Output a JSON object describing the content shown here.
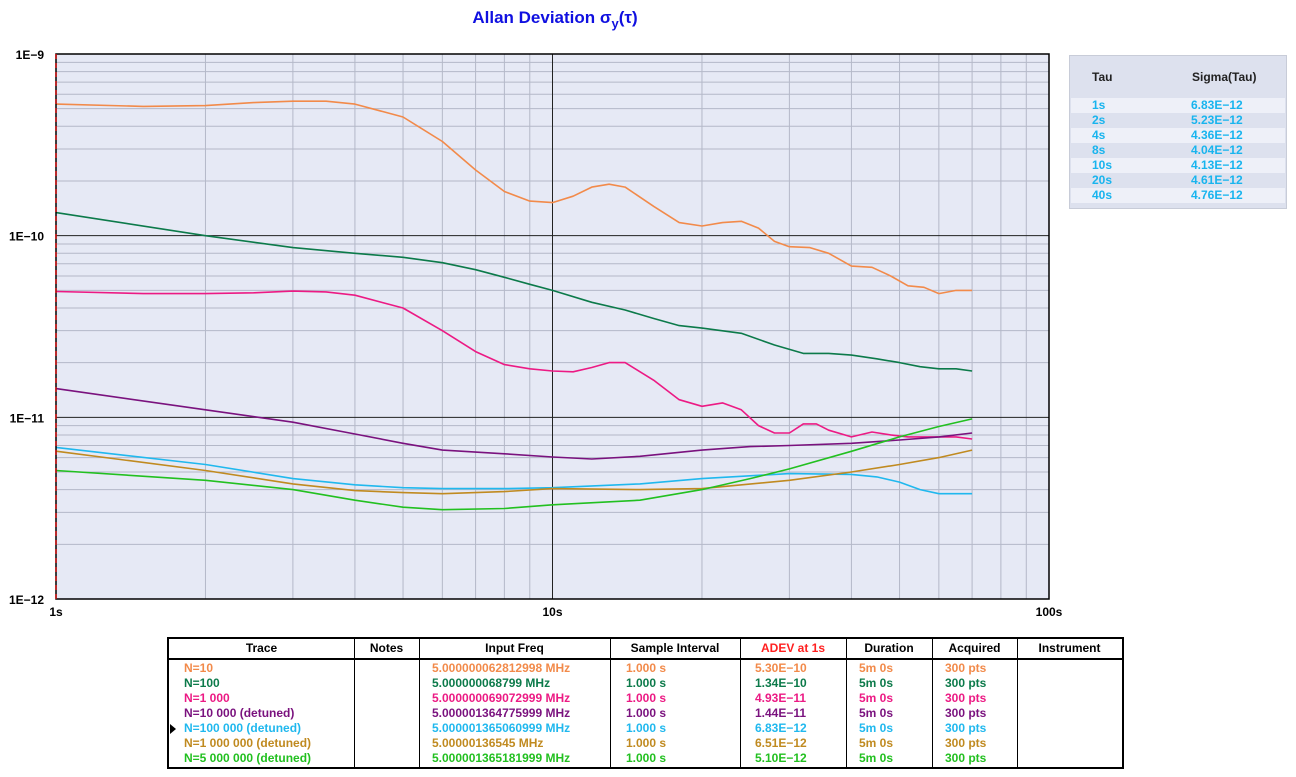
{
  "title": {
    "main": "Allan Deviation σ",
    "sub": "y",
    "tail": "(τ)"
  },
  "chart_data": {
    "type": "line",
    "title": "Allan Deviation σy(τ)",
    "x_scale": "log",
    "y_scale": "log",
    "xlim": [
      1,
      100
    ],
    "ylim": [
      1e-12,
      1e-09
    ],
    "x_tick_labels": [
      "1s",
      "10s",
      "100s"
    ],
    "y_tick_labels": [
      "1E−9",
      "1E−10",
      "1E−11",
      "1E−12"
    ],
    "grid": true,
    "series": [
      {
        "name": "N=10",
        "color": "#f28a4a",
        "points": [
          [
            1,
            5.3e-10
          ],
          [
            1.5,
            5.15e-10
          ],
          [
            2,
            5.2e-10
          ],
          [
            2.5,
            5.4e-10
          ],
          [
            3,
            5.5e-10
          ],
          [
            3.5,
            5.5e-10
          ],
          [
            4,
            5.3e-10
          ],
          [
            5,
            4.5e-10
          ],
          [
            6,
            3.3e-10
          ],
          [
            7,
            2.3e-10
          ],
          [
            8,
            1.75e-10
          ],
          [
            9,
            1.55e-10
          ],
          [
            10,
            1.52e-10
          ],
          [
            11,
            1.65e-10
          ],
          [
            12,
            1.85e-10
          ],
          [
            13,
            1.92e-10
          ],
          [
            14,
            1.85e-10
          ],
          [
            16,
            1.45e-10
          ],
          [
            18,
            1.18e-10
          ],
          [
            20,
            1.13e-10
          ],
          [
            22,
            1.18e-10
          ],
          [
            24,
            1.2e-10
          ],
          [
            26,
            1.1e-10
          ],
          [
            28,
            9.3e-11
          ],
          [
            30,
            8.7e-11
          ],
          [
            33,
            8.6e-11
          ],
          [
            36,
            8e-11
          ],
          [
            40,
            6.8e-11
          ],
          [
            44,
            6.7e-11
          ],
          [
            48,
            6e-11
          ],
          [
            52,
            5.3e-11
          ],
          [
            56,
            5.2e-11
          ],
          [
            60,
            4.8e-11
          ],
          [
            65,
            5e-11
          ],
          [
            70,
            5e-11
          ]
        ]
      },
      {
        "name": "N=100",
        "color": "#0c7a4a",
        "points": [
          [
            1,
            1.34e-10
          ],
          [
            2,
            1e-10
          ],
          [
            3,
            8.6e-11
          ],
          [
            4,
            8e-11
          ],
          [
            5,
            7.6e-11
          ],
          [
            6,
            7.1e-11
          ],
          [
            7,
            6.5e-11
          ],
          [
            8,
            5.9e-11
          ],
          [
            9,
            5.4e-11
          ],
          [
            10,
            5e-11
          ],
          [
            12,
            4.3e-11
          ],
          [
            14,
            3.9e-11
          ],
          [
            16,
            3.5e-11
          ],
          [
            18,
            3.2e-11
          ],
          [
            20,
            3.1e-11
          ],
          [
            24,
            2.9e-11
          ],
          [
            28,
            2.5e-11
          ],
          [
            32,
            2.25e-11
          ],
          [
            36,
            2.25e-11
          ],
          [
            40,
            2.2e-11
          ],
          [
            45,
            2.1e-11
          ],
          [
            50,
            2e-11
          ],
          [
            55,
            1.9e-11
          ],
          [
            60,
            1.85e-11
          ],
          [
            65,
            1.85e-11
          ],
          [
            70,
            1.8e-11
          ]
        ]
      },
      {
        "name": "N=1 000",
        "color": "#ec1a84",
        "points": [
          [
            1,
            4.93e-11
          ],
          [
            1.5,
            4.8e-11
          ],
          [
            2,
            4.8e-11
          ],
          [
            2.5,
            4.85e-11
          ],
          [
            3,
            4.95e-11
          ],
          [
            3.5,
            4.9e-11
          ],
          [
            4,
            4.7e-11
          ],
          [
            5,
            4e-11
          ],
          [
            6,
            3e-11
          ],
          [
            7,
            2.3e-11
          ],
          [
            8,
            1.95e-11
          ],
          [
            9,
            1.85e-11
          ],
          [
            10,
            1.8e-11
          ],
          [
            11,
            1.78e-11
          ],
          [
            12,
            1.88e-11
          ],
          [
            13,
            2e-11
          ],
          [
            14,
            2e-11
          ],
          [
            16,
            1.6e-11
          ],
          [
            18,
            1.25e-11
          ],
          [
            20,
            1.15e-11
          ],
          [
            22,
            1.2e-11
          ],
          [
            24,
            1.1e-11
          ],
          [
            26,
            9e-12
          ],
          [
            28,
            8.2e-12
          ],
          [
            30,
            8.2e-12
          ],
          [
            32,
            9.2e-12
          ],
          [
            34,
            9.2e-12
          ],
          [
            36,
            8.5e-12
          ],
          [
            40,
            7.8e-12
          ],
          [
            44,
            8.3e-12
          ],
          [
            48,
            8e-12
          ],
          [
            52,
            7.8e-12
          ],
          [
            56,
            7.8e-12
          ],
          [
            60,
            7.8e-12
          ],
          [
            65,
            7.8e-12
          ],
          [
            70,
            7.6e-12
          ]
        ]
      },
      {
        "name": "N=10 000 (detuned)",
        "color": "#7a127e",
        "points": [
          [
            1,
            1.44e-11
          ],
          [
            2,
            1.1e-11
          ],
          [
            3,
            9.4e-12
          ],
          [
            4,
            8.1e-12
          ],
          [
            5,
            7.2e-12
          ],
          [
            6,
            6.6e-12
          ],
          [
            8,
            6.3e-12
          ],
          [
            10,
            6.05e-12
          ],
          [
            12,
            5.9e-12
          ],
          [
            15,
            6.1e-12
          ],
          [
            20,
            6.6e-12
          ],
          [
            25,
            6.9e-12
          ],
          [
            30,
            7e-12
          ],
          [
            40,
            7.2e-12
          ],
          [
            50,
            7.5e-12
          ],
          [
            60,
            7.8e-12
          ],
          [
            70,
            8.2e-12
          ]
        ]
      },
      {
        "name": "N=100 000 (detuned)",
        "color": "#20b8ee",
        "points": [
          [
            1,
            6.83e-12
          ],
          [
            2,
            5.5e-12
          ],
          [
            3,
            4.6e-12
          ],
          [
            4,
            4.25e-12
          ],
          [
            5,
            4.1e-12
          ],
          [
            6,
            4.05e-12
          ],
          [
            8,
            4.05e-12
          ],
          [
            10,
            4.1e-12
          ],
          [
            15,
            4.3e-12
          ],
          [
            20,
            4.6e-12
          ],
          [
            30,
            4.9e-12
          ],
          [
            40,
            4.85e-12
          ],
          [
            45,
            4.7e-12
          ],
          [
            50,
            4.4e-12
          ],
          [
            55,
            4e-12
          ],
          [
            60,
            3.8e-12
          ],
          [
            70,
            3.8e-12
          ]
        ]
      },
      {
        "name": "N=1 000 000 (detuned)",
        "color": "#c08a20",
        "points": [
          [
            1,
            6.51e-12
          ],
          [
            2,
            5.1e-12
          ],
          [
            3,
            4.3e-12
          ],
          [
            4,
            3.95e-12
          ],
          [
            5,
            3.85e-12
          ],
          [
            6,
            3.8e-12
          ],
          [
            8,
            3.9e-12
          ],
          [
            10,
            4.05e-12
          ],
          [
            15,
            4e-12
          ],
          [
            20,
            4.05e-12
          ],
          [
            30,
            4.5e-12
          ],
          [
            40,
            5e-12
          ],
          [
            50,
            5.5e-12
          ],
          [
            60,
            6e-12
          ],
          [
            70,
            6.6e-12
          ]
        ]
      },
      {
        "name": "N=5 000 000 (detuned)",
        "color": "#22c020",
        "points": [
          [
            1,
            5.1e-12
          ],
          [
            2,
            4.5e-12
          ],
          [
            3,
            4e-12
          ],
          [
            4,
            3.5e-12
          ],
          [
            5,
            3.2e-12
          ],
          [
            6,
            3.1e-12
          ],
          [
            8,
            3.15e-12
          ],
          [
            10,
            3.3e-12
          ],
          [
            15,
            3.5e-12
          ],
          [
            20,
            4e-12
          ],
          [
            25,
            4.6e-12
          ],
          [
            30,
            5.2e-12
          ],
          [
            40,
            6.5e-12
          ],
          [
            50,
            7.8e-12
          ],
          [
            60,
            8.9e-12
          ],
          [
            70,
            9.8e-12
          ]
        ]
      }
    ]
  },
  "tau_table": {
    "headers": [
      "Tau",
      "Sigma(Tau)"
    ],
    "rows": [
      [
        "1s",
        "6.83E−12"
      ],
      [
        "2s",
        "5.23E−12"
      ],
      [
        "4s",
        "4.36E−12"
      ],
      [
        "8s",
        "4.04E−12"
      ],
      [
        "10s",
        "4.13E−12"
      ],
      [
        "20s",
        "4.61E−12"
      ],
      [
        "40s",
        "4.76E−12"
      ]
    ]
  },
  "trace_table": {
    "headers": [
      "Trace",
      "Notes",
      "Input Freq",
      "Sample Interval",
      "ADEV at 1s",
      "Duration",
      "Acquired",
      "Instrument"
    ],
    "adev_header_color": "#ff2020",
    "rows": [
      {
        "trace": "N=10",
        "freq": "5.000000062812998 MHz",
        "interval": "1.000 s",
        "adev": "5.30E−10",
        "duration": "5m 0s",
        "acquired": "300 pts",
        "color": "#f28a4a"
      },
      {
        "trace": "N=100",
        "freq": "5.000000068799 MHz",
        "interval": "1.000 s",
        "adev": "1.34E−10",
        "duration": "5m 0s",
        "acquired": "300 pts",
        "color": "#0c7a4a"
      },
      {
        "trace": "N=1 000",
        "freq": "5.000000069072999 MHz",
        "interval": "1.000 s",
        "adev": "4.93E−11",
        "duration": "5m 0s",
        "acquired": "300 pts",
        "color": "#ec1a84"
      },
      {
        "trace": "N=10 000 (detuned)",
        "freq": "5.000001364775999 MHz",
        "interval": "1.000 s",
        "adev": "1.44E−11",
        "duration": "5m 0s",
        "acquired": "300 pts",
        "color": "#7a127e"
      },
      {
        "trace": "N=100 000 (detuned)",
        "freq": "5.000001365060999 MHz",
        "interval": "1.000 s",
        "adev": "6.83E−12",
        "duration": "5m 0s",
        "acquired": "300 pts",
        "color": "#20b8ee"
      },
      {
        "trace": "N=1 000 000 (detuned)",
        "freq": "5.00000136545 MHz",
        "interval": "1.000 s",
        "adev": "6.51E−12",
        "duration": "5m 0s",
        "acquired": "300 pts",
        "color": "#c08a20"
      },
      {
        "trace": "N=5 000 000 (detuned)",
        "freq": "5.000001365181999 MHz",
        "interval": "1.000 s",
        "adev": "5.10E−12",
        "duration": "5m 0s",
        "acquired": "300 pts",
        "color": "#22c020"
      }
    ]
  }
}
